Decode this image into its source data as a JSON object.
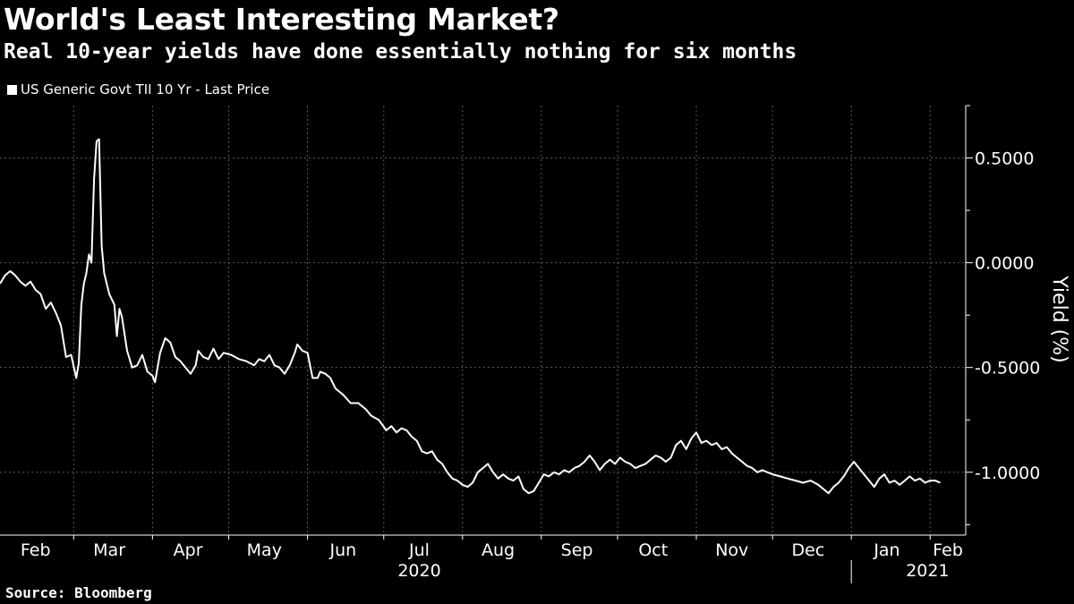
{
  "title": "World's Least Interesting Market?",
  "subtitle": "Real 10-year yields have done essentially nothing for six months",
  "source": "Source: Bloomberg",
  "colors": {
    "background": "#000000",
    "line": "#ffffff",
    "grid": "#5a5a5a"
  },
  "chart_data": {
    "type": "line",
    "legend": "top-left",
    "grid": true,
    "ylabel": "Yield (%)",
    "ylim": [
      -1.3,
      0.75
    ],
    "y_ticks": [
      {
        "value": 0.5,
        "label": "0.5000"
      },
      {
        "value": 0.0,
        "label": "0.0000"
      },
      {
        "value": -0.5,
        "label": "-0.5000"
      },
      {
        "value": -1.0,
        "label": "-1.0000"
      }
    ],
    "x_start": "2020-02-01",
    "x_end": "2021-02-15",
    "month_labels": [
      {
        "label": "Feb",
        "date": "2020-02-15"
      },
      {
        "label": "Mar",
        "date": "2020-03-15"
      },
      {
        "label": "Apr",
        "date": "2020-04-15"
      },
      {
        "label": "May",
        "date": "2020-05-15"
      },
      {
        "label": "Jun",
        "date": "2020-06-15"
      },
      {
        "label": "Jul",
        "date": "2020-07-15"
      },
      {
        "label": "Aug",
        "date": "2020-08-15"
      },
      {
        "label": "Sep",
        "date": "2020-09-15"
      },
      {
        "label": "Oct",
        "date": "2020-10-15"
      },
      {
        "label": "Nov",
        "date": "2020-11-15"
      },
      {
        "label": "Dec",
        "date": "2020-12-15"
      },
      {
        "label": "Jan",
        "date": "2021-01-15"
      },
      {
        "label": "Feb",
        "date": "2021-02-08"
      }
    ],
    "year_labels": [
      {
        "label": "2020",
        "date": "2020-07-15"
      },
      {
        "label": "2021",
        "date": "2021-01-31"
      }
    ],
    "year_divider": "2021-01-01",
    "series": [
      {
        "name": "US Generic Govt TII 10 Yr - Last Price",
        "points": [
          [
            "2020-02-01",
            -0.1
          ],
          [
            "2020-02-03",
            -0.06
          ],
          [
            "2020-02-05",
            -0.04
          ],
          [
            "2020-02-07",
            -0.06
          ],
          [
            "2020-02-09",
            -0.09
          ],
          [
            "2020-02-11",
            -0.11
          ],
          [
            "2020-02-13",
            -0.09
          ],
          [
            "2020-02-15",
            -0.13
          ],
          [
            "2020-02-17",
            -0.15
          ],
          [
            "2020-02-19",
            -0.22
          ],
          [
            "2020-02-21",
            -0.19
          ],
          [
            "2020-02-23",
            -0.24
          ],
          [
            "2020-02-25",
            -0.3
          ],
          [
            "2020-02-27",
            -0.45
          ],
          [
            "2020-02-29",
            -0.44
          ],
          [
            "2020-03-02",
            -0.55
          ],
          [
            "2020-03-03",
            -0.48
          ],
          [
            "2020-03-04",
            -0.2
          ],
          [
            "2020-03-05",
            -0.1
          ],
          [
            "2020-03-06",
            -0.05
          ],
          [
            "2020-03-07",
            0.04
          ],
          [
            "2020-03-08",
            0.0
          ],
          [
            "2020-03-09",
            0.4
          ],
          [
            "2020-03-10",
            0.58
          ],
          [
            "2020-03-11",
            0.59
          ],
          [
            "2020-03-12",
            0.08
          ],
          [
            "2020-03-13",
            -0.05
          ],
          [
            "2020-03-15",
            -0.15
          ],
          [
            "2020-03-17",
            -0.2
          ],
          [
            "2020-03-18",
            -0.35
          ],
          [
            "2020-03-19",
            -0.22
          ],
          [
            "2020-03-20",
            -0.26
          ],
          [
            "2020-03-22",
            -0.42
          ],
          [
            "2020-03-24",
            -0.5
          ],
          [
            "2020-03-26",
            -0.49
          ],
          [
            "2020-03-28",
            -0.44
          ],
          [
            "2020-03-30",
            -0.52
          ],
          [
            "2020-04-01",
            -0.54
          ],
          [
            "2020-04-02",
            -0.57
          ],
          [
            "2020-04-04",
            -0.43
          ],
          [
            "2020-04-06",
            -0.36
          ],
          [
            "2020-04-08",
            -0.38
          ],
          [
            "2020-04-10",
            -0.45
          ],
          [
            "2020-04-12",
            -0.47
          ],
          [
            "2020-04-14",
            -0.5
          ],
          [
            "2020-04-16",
            -0.53
          ],
          [
            "2020-04-18",
            -0.49
          ],
          [
            "2020-04-19",
            -0.42
          ],
          [
            "2020-04-21",
            -0.45
          ],
          [
            "2020-04-23",
            -0.46
          ],
          [
            "2020-04-25",
            -0.41
          ],
          [
            "2020-04-27",
            -0.46
          ],
          [
            "2020-04-29",
            -0.43
          ],
          [
            "2020-05-02",
            -0.44
          ],
          [
            "2020-05-05",
            -0.46
          ],
          [
            "2020-05-08",
            -0.47
          ],
          [
            "2020-05-11",
            -0.49
          ],
          [
            "2020-05-13",
            -0.46
          ],
          [
            "2020-05-15",
            -0.47
          ],
          [
            "2020-05-17",
            -0.44
          ],
          [
            "2020-05-19",
            -0.49
          ],
          [
            "2020-05-21",
            -0.5
          ],
          [
            "2020-05-23",
            -0.53
          ],
          [
            "2020-05-25",
            -0.49
          ],
          [
            "2020-05-27",
            -0.43
          ],
          [
            "2020-05-28",
            -0.39
          ],
          [
            "2020-05-30",
            -0.42
          ],
          [
            "2020-06-01",
            -0.43
          ],
          [
            "2020-06-03",
            -0.55
          ],
          [
            "2020-06-05",
            -0.55
          ],
          [
            "2020-06-06",
            -0.52
          ],
          [
            "2020-06-08",
            -0.53
          ],
          [
            "2020-06-10",
            -0.55
          ],
          [
            "2020-06-12",
            -0.6
          ],
          [
            "2020-06-15",
            -0.63
          ],
          [
            "2020-06-18",
            -0.67
          ],
          [
            "2020-06-21",
            -0.67
          ],
          [
            "2020-06-24",
            -0.7
          ],
          [
            "2020-06-26",
            -0.73
          ],
          [
            "2020-06-29",
            -0.75
          ],
          [
            "2020-07-02",
            -0.8
          ],
          [
            "2020-07-04",
            -0.78
          ],
          [
            "2020-07-06",
            -0.81
          ],
          [
            "2020-07-08",
            -0.79
          ],
          [
            "2020-07-10",
            -0.8
          ],
          [
            "2020-07-12",
            -0.83
          ],
          [
            "2020-07-14",
            -0.85
          ],
          [
            "2020-07-16",
            -0.9
          ],
          [
            "2020-07-18",
            -0.91
          ],
          [
            "2020-07-20",
            -0.9
          ],
          [
            "2020-07-22",
            -0.94
          ],
          [
            "2020-07-24",
            -0.96
          ],
          [
            "2020-07-26",
            -1.0
          ],
          [
            "2020-07-28",
            -1.03
          ],
          [
            "2020-07-30",
            -1.04
          ],
          [
            "2020-08-01",
            -1.06
          ],
          [
            "2020-08-03",
            -1.07
          ],
          [
            "2020-08-05",
            -1.05
          ],
          [
            "2020-08-07",
            -1.0
          ],
          [
            "2020-08-09",
            -0.98
          ],
          [
            "2020-08-11",
            -0.96
          ],
          [
            "2020-08-13",
            -1.0
          ],
          [
            "2020-08-15",
            -1.03
          ],
          [
            "2020-08-17",
            -1.01
          ],
          [
            "2020-08-19",
            -1.03
          ],
          [
            "2020-08-21",
            -1.04
          ],
          [
            "2020-08-23",
            -1.02
          ],
          [
            "2020-08-25",
            -1.08
          ],
          [
            "2020-08-27",
            -1.1
          ],
          [
            "2020-08-29",
            -1.09
          ],
          [
            "2020-08-31",
            -1.05
          ],
          [
            "2020-09-02",
            -1.01
          ],
          [
            "2020-09-04",
            -1.02
          ],
          [
            "2020-09-06",
            -1.0
          ],
          [
            "2020-09-08",
            -1.01
          ],
          [
            "2020-09-10",
            -0.99
          ],
          [
            "2020-09-12",
            -1.0
          ],
          [
            "2020-09-14",
            -0.98
          ],
          [
            "2020-09-16",
            -0.97
          ],
          [
            "2020-09-18",
            -0.95
          ],
          [
            "2020-09-20",
            -0.92
          ],
          [
            "2020-09-22",
            -0.95
          ],
          [
            "2020-09-24",
            -0.99
          ],
          [
            "2020-09-26",
            -0.96
          ],
          [
            "2020-09-28",
            -0.94
          ],
          [
            "2020-09-30",
            -0.96
          ],
          [
            "2020-10-02",
            -0.93
          ],
          [
            "2020-10-04",
            -0.95
          ],
          [
            "2020-10-06",
            -0.96
          ],
          [
            "2020-10-08",
            -0.98
          ],
          [
            "2020-10-10",
            -0.97
          ],
          [
            "2020-10-12",
            -0.96
          ],
          [
            "2020-10-14",
            -0.94
          ],
          [
            "2020-10-16",
            -0.92
          ],
          [
            "2020-10-18",
            -0.93
          ],
          [
            "2020-10-20",
            -0.95
          ],
          [
            "2020-10-22",
            -0.93
          ],
          [
            "2020-10-24",
            -0.87
          ],
          [
            "2020-10-26",
            -0.85
          ],
          [
            "2020-10-28",
            -0.89
          ],
          [
            "2020-10-30",
            -0.84
          ],
          [
            "2020-11-01",
            -0.81
          ],
          [
            "2020-11-03",
            -0.86
          ],
          [
            "2020-11-05",
            -0.85
          ],
          [
            "2020-11-07",
            -0.87
          ],
          [
            "2020-11-09",
            -0.86
          ],
          [
            "2020-11-11",
            -0.89
          ],
          [
            "2020-11-13",
            -0.88
          ],
          [
            "2020-11-15",
            -0.91
          ],
          [
            "2020-11-17",
            -0.93
          ],
          [
            "2020-11-19",
            -0.95
          ],
          [
            "2020-11-21",
            -0.97
          ],
          [
            "2020-11-23",
            -0.98
          ],
          [
            "2020-11-25",
            -1.0
          ],
          [
            "2020-11-27",
            -0.99
          ],
          [
            "2020-11-29",
            -1.0
          ],
          [
            "2020-12-01",
            -1.01
          ],
          [
            "2020-12-04",
            -1.02
          ],
          [
            "2020-12-07",
            -1.03
          ],
          [
            "2020-12-10",
            -1.04
          ],
          [
            "2020-12-13",
            -1.05
          ],
          [
            "2020-12-16",
            -1.04
          ],
          [
            "2020-12-19",
            -1.06
          ],
          [
            "2020-12-21",
            -1.08
          ],
          [
            "2020-12-23",
            -1.1
          ],
          [
            "2020-12-25",
            -1.07
          ],
          [
            "2020-12-27",
            -1.05
          ],
          [
            "2020-12-29",
            -1.02
          ],
          [
            "2020-12-31",
            -0.98
          ],
          [
            "2021-01-02",
            -0.95
          ],
          [
            "2021-01-04",
            -0.98
          ],
          [
            "2021-01-06",
            -1.01
          ],
          [
            "2021-01-08",
            -1.04
          ],
          [
            "2021-01-10",
            -1.07
          ],
          [
            "2021-01-12",
            -1.03
          ],
          [
            "2021-01-14",
            -1.01
          ],
          [
            "2021-01-16",
            -1.05
          ],
          [
            "2021-01-18",
            -1.04
          ],
          [
            "2021-01-20",
            -1.06
          ],
          [
            "2021-01-22",
            -1.04
          ],
          [
            "2021-01-24",
            -1.02
          ],
          [
            "2021-01-26",
            -1.04
          ],
          [
            "2021-01-28",
            -1.03
          ],
          [
            "2021-01-30",
            -1.05
          ],
          [
            "2021-02-01",
            -1.04
          ],
          [
            "2021-02-03",
            -1.04
          ],
          [
            "2021-02-05",
            -1.05
          ]
        ]
      }
    ]
  }
}
